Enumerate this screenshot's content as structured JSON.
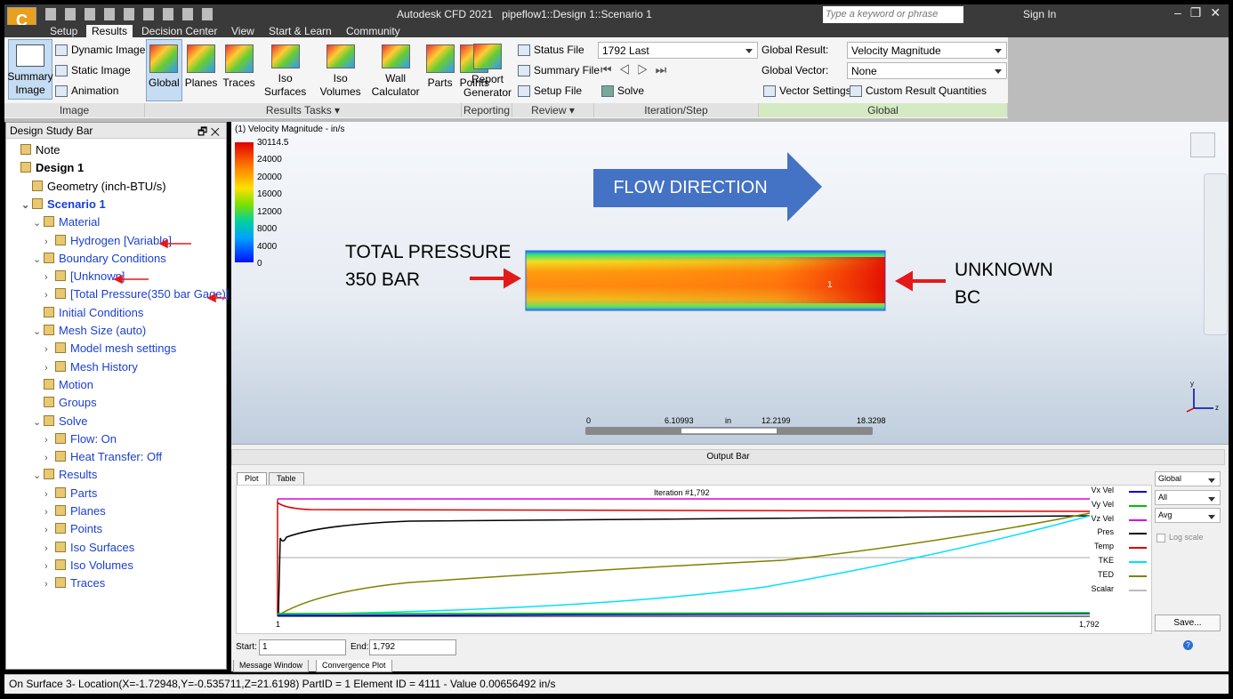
{
  "title_bar": {
    "app": "Autodesk CFD 2021",
    "document": "pipeflow1::Design 1::Scenario 1",
    "search_placeholder": "Type a keyword or phrase",
    "sign_in": "Sign In"
  },
  "menu_tabs": [
    "Setup",
    "Results",
    "Decision Center",
    "View",
    "Start & Learn",
    "Community"
  ],
  "active_tab": "Results",
  "ribbon": {
    "image": {
      "label": "Image",
      "summary_image": "Summary Image",
      "items": [
        "Dynamic Image",
        "Static Image",
        "Animation"
      ]
    },
    "results_tasks": {
      "label": "Results Tasks",
      "buttons": [
        "Global",
        "Planes",
        "Traces",
        "Iso Surfaces",
        "Iso Volumes",
        "Wall Calculator",
        "Parts",
        "Points"
      ]
    },
    "reporting": {
      "label": "Reporting",
      "button": "Report Generator"
    },
    "review": {
      "label": "Review",
      "items": [
        "Status File",
        "Summary File",
        "Setup File"
      ]
    },
    "iteration_step": {
      "label": "Iteration/Step",
      "step": "1792 Last",
      "solve": "Solve"
    },
    "global": {
      "label": "Global",
      "result_label": "Global Result:",
      "result": "Velocity Magnitude",
      "vector_label": "Global Vector:",
      "vector": "None",
      "vector_settings": "Vector Settings",
      "custom": "Custom Result Quantities"
    }
  },
  "design_study_bar": {
    "title": "Design Study Bar",
    "tree": [
      {
        "label": "Note"
      },
      {
        "label": "Design 1",
        "children": [
          {
            "label": "Geometry (inch-BTU/s)"
          },
          {
            "label": "Scenario 1",
            "children": [
              {
                "label": "Material",
                "children": [
                  {
                    "label": "Hydrogen [Variable]"
                  }
                ]
              },
              {
                "label": "Boundary Conditions",
                "children": [
                  {
                    "label": "[Unknown]"
                  },
                  {
                    "label": "[Total Pressure(350 bar Gage)]"
                  }
                ]
              },
              {
                "label": "Initial Conditions"
              },
              {
                "label": "Mesh Size (auto)",
                "children": [
                  {
                    "label": "Model mesh settings"
                  },
                  {
                    "label": "Mesh History"
                  }
                ]
              },
              {
                "label": "Motion"
              },
              {
                "label": "Groups"
              },
              {
                "label": "Solve",
                "children": [
                  {
                    "label": "Flow: On"
                  },
                  {
                    "label": "Heat Transfer: Off"
                  }
                ]
              },
              {
                "label": "Results",
                "children": [
                  {
                    "label": "Parts"
                  },
                  {
                    "label": "Planes"
                  },
                  {
                    "label": "Points"
                  },
                  {
                    "label": "Iso Surfaces"
                  },
                  {
                    "label": "Iso Volumes"
                  },
                  {
                    "label": "Traces"
                  }
                ]
              }
            ]
          }
        ]
      }
    ]
  },
  "viewport": {
    "legend_title": "(1) Velocity Magnitude - in/s",
    "legend_labels": [
      "30114.5",
      "24000",
      "20000",
      "16000",
      "12000",
      "8000",
      "4000",
      "0"
    ],
    "flow_direction": "FLOW DIRECTION",
    "inlet": [
      "TOTAL PRESSURE",
      "350 BAR"
    ],
    "outlet": [
      "UNKNOWN",
      "BC"
    ],
    "part_label": "1",
    "scale_labels": [
      "0",
      "6.10993",
      "in",
      "12.2199",
      "18.3298"
    ],
    "axes": [
      "y",
      "z"
    ]
  },
  "output_bar": {
    "title": "Output Bar",
    "tabs": [
      "Plot",
      "Table"
    ],
    "plot_title": "Iteration #1,792",
    "legend": [
      "Vx Vel",
      "Vy Vel",
      "Vz Vel",
      "Pres",
      "Temp",
      "TKE",
      "TED",
      "Scalar"
    ],
    "x_labels": [
      "1",
      "1,792"
    ],
    "selects": [
      "Global",
      "All",
      "Avg"
    ],
    "log_scale": "Log scale",
    "save": "Save...",
    "start_label": "Start:",
    "start": "1",
    "end_label": "End:",
    "end": "1,792",
    "bottom_tabs": [
      "Message Window",
      "Convergence Plot"
    ]
  },
  "status_bar": "On Surface 3- Location(X=-1.72948,Y=-0.535711,Z=21.6198) PartID = 1 Element ID = 4111 - Value 0.00656492  in/s"
}
